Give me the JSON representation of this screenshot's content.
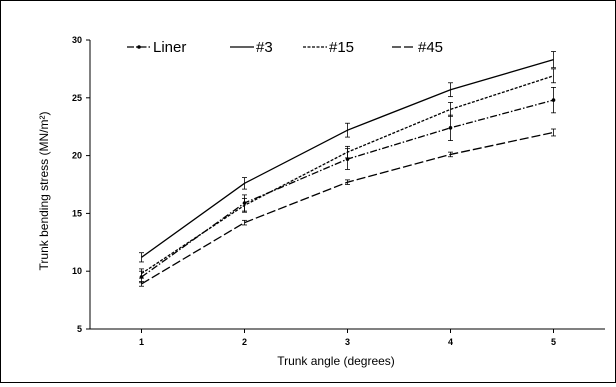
{
  "chart_data": {
    "type": "line",
    "title": "",
    "xlabel": "Trunk angle (degrees)",
    "ylabel": "Trunk bending stress (MN/m²)",
    "x": [
      1,
      2,
      3,
      4,
      5
    ],
    "xlim": [
      0.5,
      5.5
    ],
    "ylim": [
      5,
      30
    ],
    "x_ticks": [
      "1",
      "2",
      "3",
      "4",
      "5"
    ],
    "y_ticks": [
      "5",
      "10",
      "15",
      "20",
      "25",
      "30"
    ],
    "grid": false,
    "legend_position": "top",
    "series": [
      {
        "name": "Liner",
        "values": [
          9.5,
          15.9,
          19.7,
          22.4,
          24.8
        ],
        "errors": [
          0.5,
          0.7,
          0.9,
          1.1,
          1.1
        ],
        "dash": "7,2,1.5,2",
        "marker": true,
        "color": "#000000"
      },
      {
        "name": "#3",
        "values": [
          11.2,
          17.6,
          22.2,
          25.7,
          28.3
        ],
        "errors": [
          0.4,
          0.5,
          0.6,
          0.6,
          0.7
        ],
        "dash": "",
        "marker": false,
        "color": "#000000"
      },
      {
        "name": "#15",
        "values": [
          9.8,
          15.7,
          20.3,
          24.0,
          26.9
        ],
        "errors": [
          0.4,
          0.6,
          0.5,
          0.6,
          0.6
        ],
        "dash": "3,1.5",
        "marker": false,
        "color": "#000000"
      },
      {
        "name": "#45",
        "values": [
          8.9,
          14.2,
          17.7,
          20.1,
          22.0
        ],
        "errors": [
          0.2,
          0.2,
          0.2,
          0.2,
          0.3
        ],
        "dash": "9,3",
        "marker": false,
        "color": "#000000"
      }
    ]
  }
}
